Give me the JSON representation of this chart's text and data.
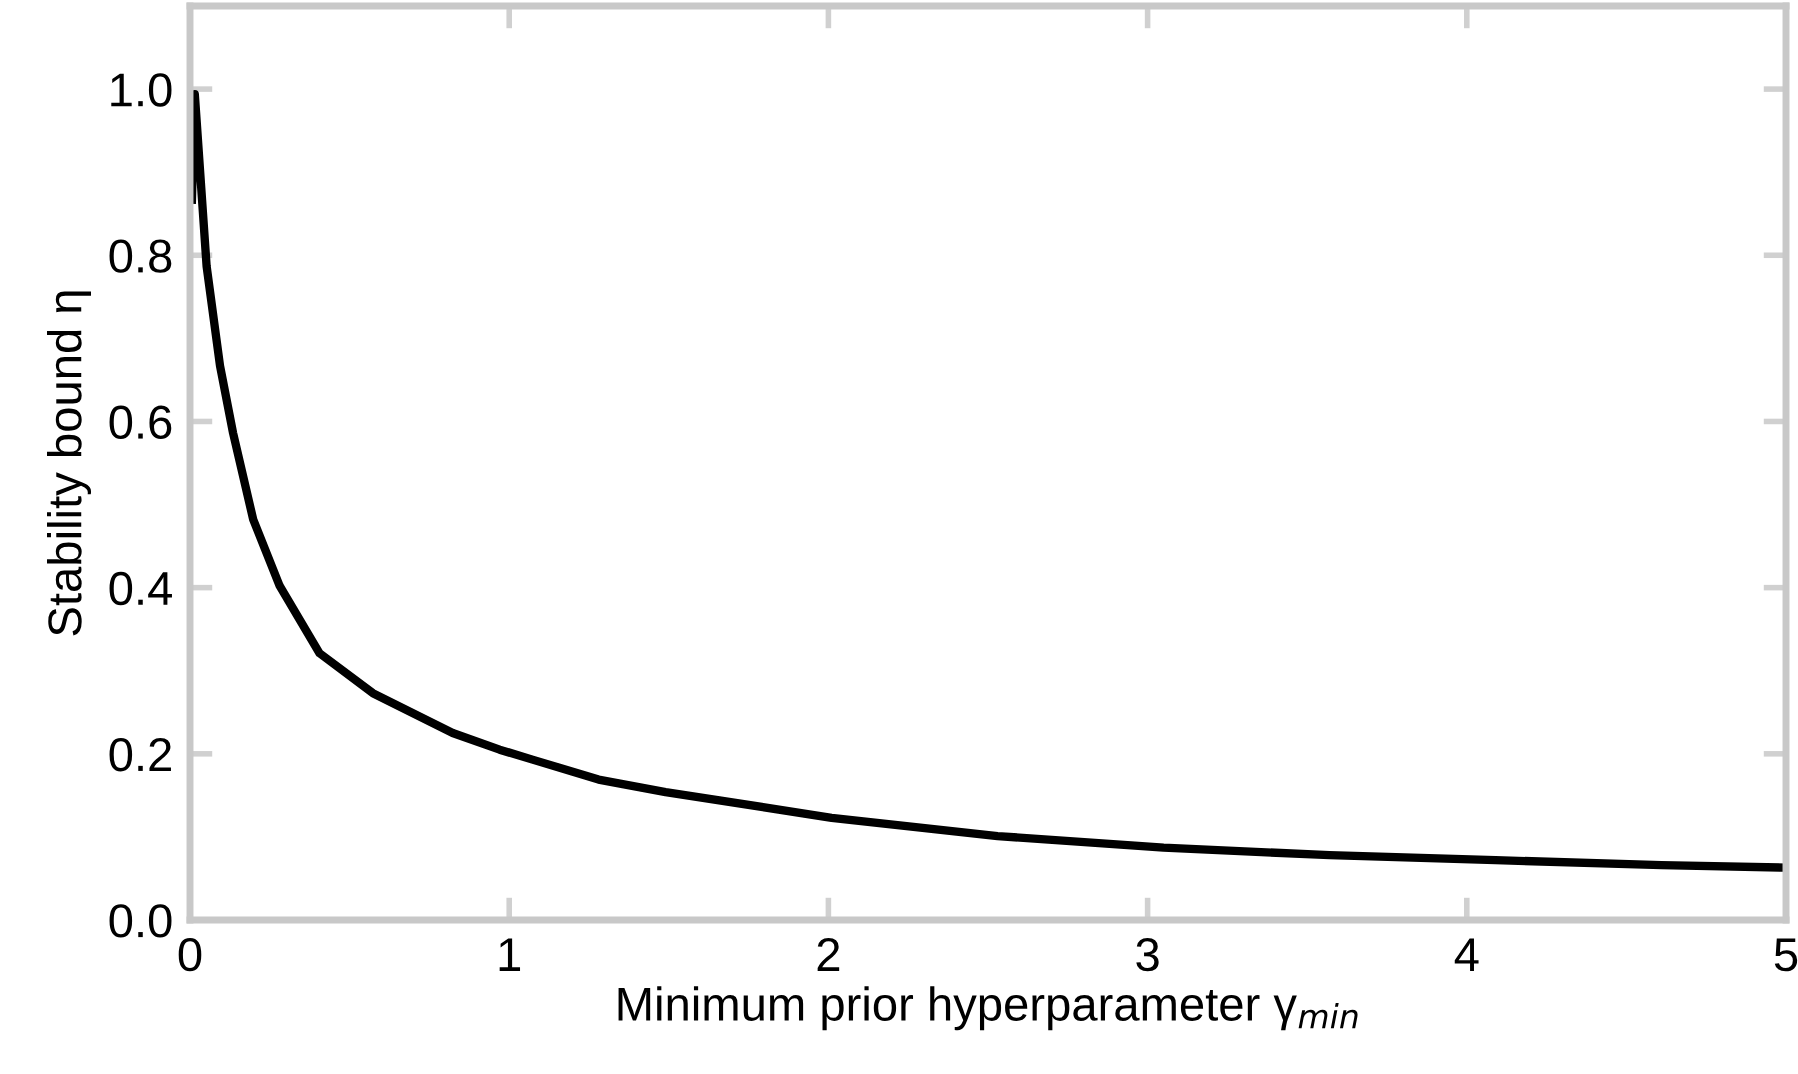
{
  "chart_data": {
    "type": "line",
    "xlabel": "Minimum prior hyperparameter γ$_{min}$",
    "ylabel": "Stability bound η",
    "x": [
      0.006,
      0.015,
      0.052,
      0.094,
      0.135,
      0.198,
      0.281,
      0.406,
      0.573,
      0.823,
      0.97,
      1.073,
      1.28,
      1.49,
      2.01,
      2.53,
      3.05,
      3.57,
      4.09,
      4.61,
      5.0
    ],
    "series": [
      {
        "color": "#000000",
        "values": [
          0.867,
          0.994,
          0.787,
          0.667,
          0.586,
          0.482,
          0.402,
          0.321,
          0.273,
          0.225,
          0.205,
          0.193,
          0.169,
          0.154,
          0.123,
          0.101,
          0.087,
          0.078,
          0.072,
          0.066,
          0.063
        ]
      }
    ],
    "xlim": [
      0,
      5
    ],
    "xticks": [
      0,
      1,
      2,
      3,
      4,
      5
    ],
    "ylim": [
      0,
      1.1
    ],
    "yticks": [
      {
        "value": 0,
        "label": "0.0"
      },
      {
        "value": 0.2,
        "label": "0.2"
      },
      {
        "value": 0.4,
        "label": "0.4"
      },
      {
        "value": 0.6,
        "label": "0.6"
      },
      {
        "value": 0.8,
        "label": "0.8"
      },
      {
        "value": 1.0,
        "label": "1.0"
      }
    ],
    "grid": false,
    "legend": false,
    "marker": "none",
    "line_style": "solid"
  }
}
